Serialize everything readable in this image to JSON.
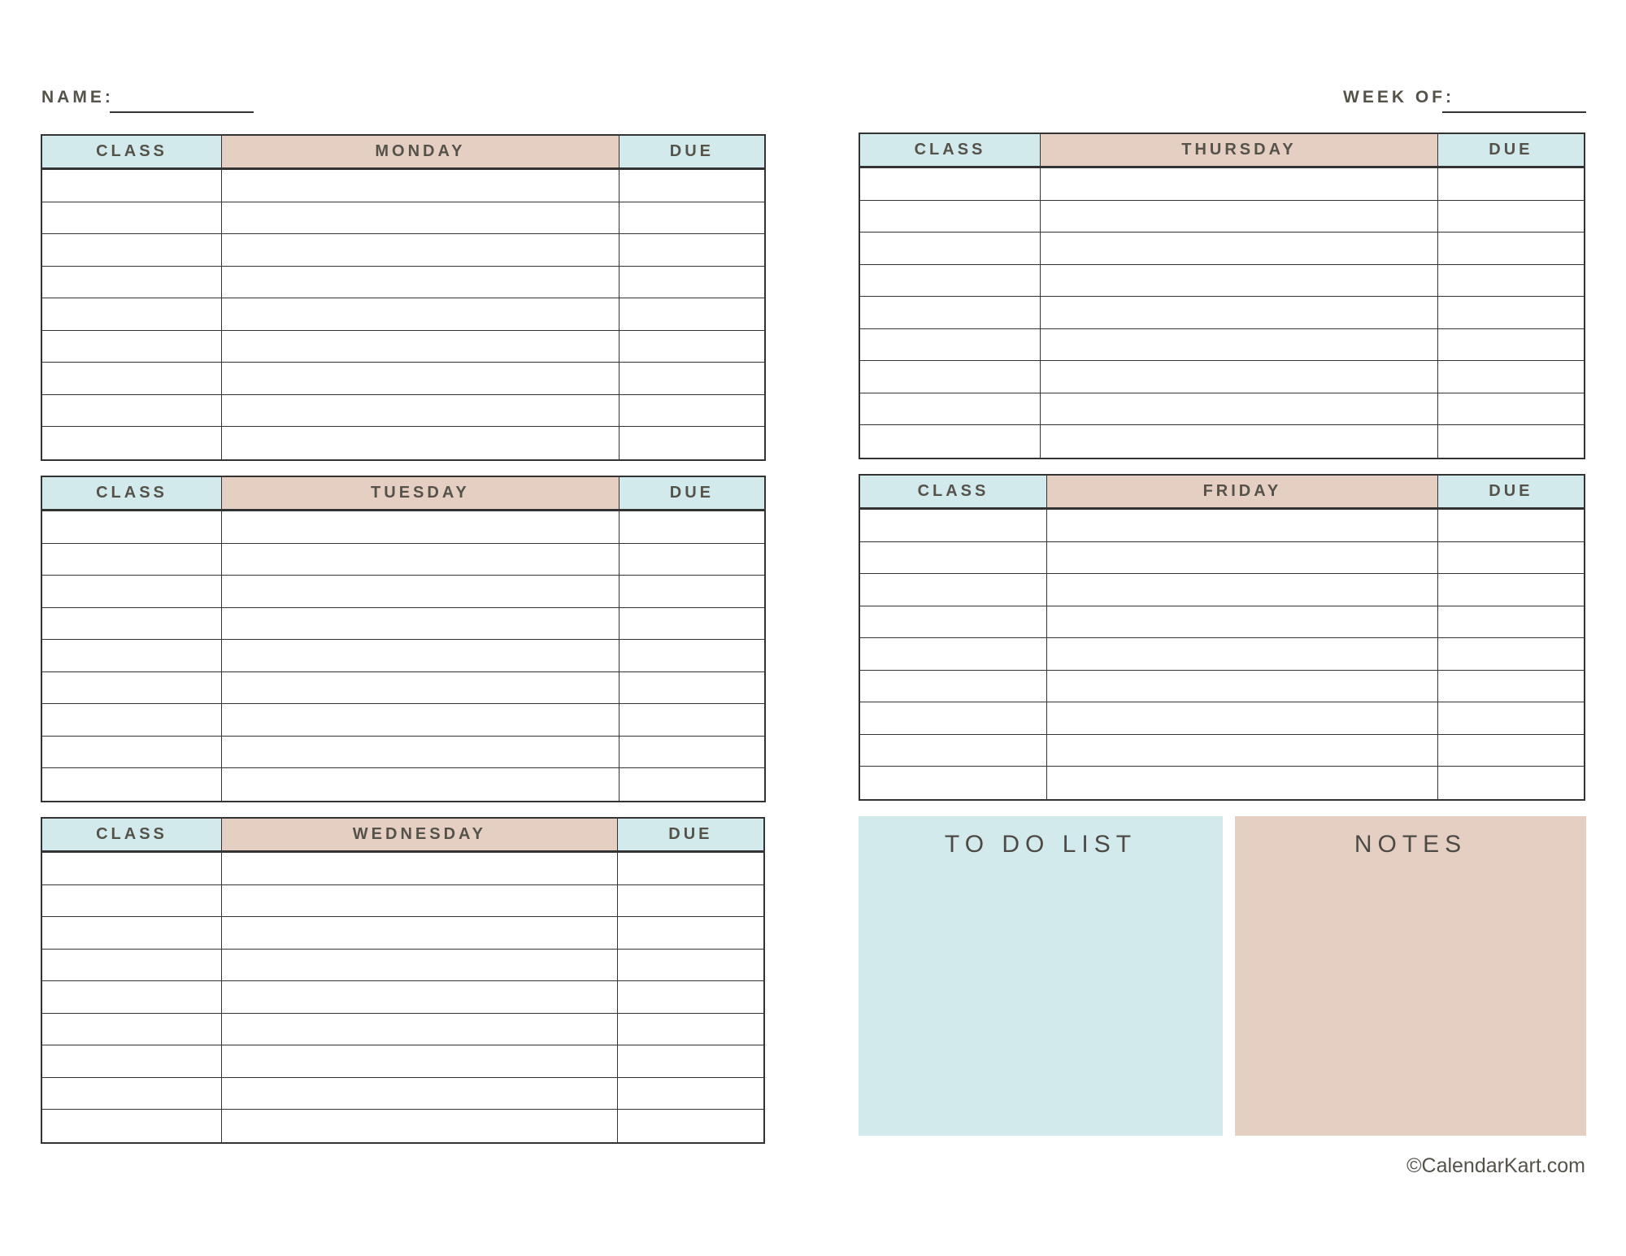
{
  "header": {
    "name_label": "NAME:",
    "week_label": "WEEK OF:"
  },
  "colors": {
    "header_blue": "#d3eaed",
    "header_peach": "#e5cfc2",
    "text": "#55524a"
  },
  "tables": [
    {
      "class_header": "CLASS",
      "day": "MONDAY",
      "due_header": "DUE",
      "rows": 9
    },
    {
      "class_header": "CLASS",
      "day": "TUESDAY",
      "due_header": "DUE",
      "rows": 9
    },
    {
      "class_header": "CLASS",
      "day": "WEDNESDAY",
      "due_header": "DUE",
      "rows": 9
    },
    {
      "class_header": "CLASS",
      "day": "THURSDAY",
      "due_header": "DUE",
      "rows": 9
    },
    {
      "class_header": "CLASS",
      "day": "FRIDAY",
      "due_header": "DUE",
      "rows": 9
    }
  ],
  "todo": {
    "title": "TO DO LIST"
  },
  "notes": {
    "title": "NOTES"
  },
  "footer": {
    "copyright": "©CalendarKart.com"
  }
}
